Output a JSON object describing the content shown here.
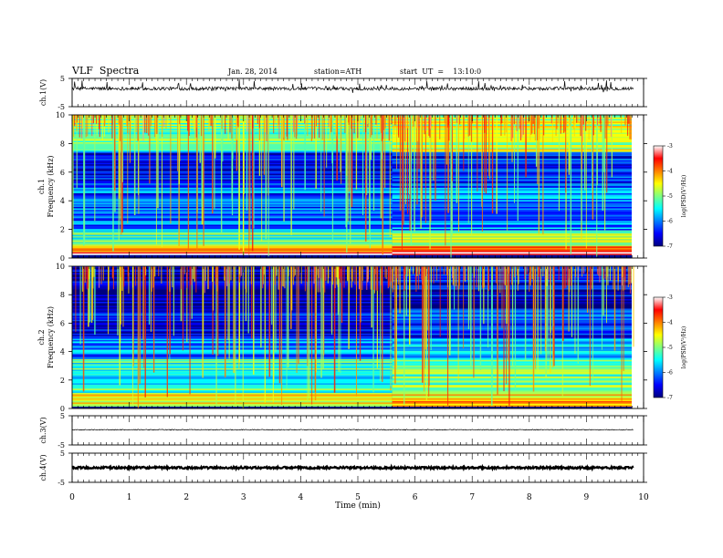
{
  "header": {
    "title": "VLF  Spectra",
    "date": "Jan. 28, 2014",
    "station": "station=ATH",
    "start": "start  UT  =    13:10:0"
  },
  "chart_data": [
    {
      "type": "line",
      "panel": "ch1-waveform",
      "ylabel": "ch.1(V)",
      "ylim": [
        -5,
        5
      ],
      "yticks": [
        "5",
        "-5"
      ],
      "x_range_min": [
        0,
        9.82
      ],
      "baseline_v": 1.4,
      "noise_amplitude_v": 0.6,
      "spike_amplitude_v": 2.4
    },
    {
      "type": "heatmap",
      "panel": "ch1-spectrogram",
      "ylabel": "ch.1\nFrequency  (kHz)",
      "ylim": [
        0,
        10
      ],
      "yticks": [
        "0",
        "2",
        "4",
        "6",
        "8",
        "10"
      ],
      "x_range_min": [
        0,
        9.82
      ],
      "colorbar": {
        "label": "log(PSD(V²/Hz)",
        "range": [
          -7,
          -3
        ],
        "ticks": [
          "-3",
          "-4",
          "-5",
          "-6",
          "-7"
        ]
      },
      "bands_khz_logpsd": [
        {
          "f": [
            0.3,
            0.5
          ],
          "value": -3.2
        },
        {
          "f": [
            0.5,
            0.9
          ],
          "value": -4.0
        },
        {
          "f": [
            0.9,
            2.0
          ],
          "value": -5.2
        },
        {
          "f": [
            2.0,
            5.0
          ],
          "value": -6.2
        },
        {
          "f": [
            5.0,
            7.5
          ],
          "value": -6.5
        },
        {
          "f": [
            7.5,
            10.0
          ],
          "value": -5.0
        }
      ],
      "transition_min": 5.6
    },
    {
      "type": "heatmap",
      "panel": "ch2-spectrogram",
      "ylabel": "ch.2\nFrequency  (kHz)",
      "ylim": [
        0,
        10
      ],
      "yticks": [
        "0",
        "2",
        "4",
        "6",
        "8",
        "10"
      ],
      "x_range_min": [
        0,
        9.82
      ],
      "colorbar": {
        "label": "log(PSD(V²/Hz)",
        "range": [
          -7,
          -3
        ],
        "ticks": [
          "-3",
          "-4",
          "-5",
          "-6",
          "-7"
        ]
      },
      "bands_khz_logpsd": [
        {
          "f": [
            0.2,
            1.0
          ],
          "value": -4.5
        },
        {
          "f": [
            1.0,
            3.5
          ],
          "value": -5.3
        },
        {
          "f": [
            3.5,
            5.0
          ],
          "value": -6.0
        },
        {
          "f": [
            5.0,
            7.0
          ],
          "value": -6.5
        },
        {
          "f": [
            7.0,
            10.0
          ],
          "value": -6.8
        }
      ],
      "transition_min": 5.6
    },
    {
      "type": "line",
      "panel": "ch3-waveform",
      "ylabel": "ch.3(V)",
      "ylim": [
        -5,
        5
      ],
      "yticks": [
        "5",
        "-5"
      ],
      "x_range_min": [
        0,
        9.82
      ],
      "baseline_v": 0.2,
      "noise_amplitude_v": 0.15
    },
    {
      "type": "line",
      "panel": "ch4-waveform",
      "ylabel": "ch.4(V)",
      "ylim": [
        -5,
        5
      ],
      "yticks": [
        "5",
        "-5"
      ],
      "x_range_min": [
        0,
        9.82
      ],
      "baseline_v": 0.0,
      "noise_amplitude_v": 0.35
    }
  ],
  "xaxis": {
    "label": "Time  (min)",
    "ticks": [
      "0",
      "1",
      "2",
      "3",
      "4",
      "5",
      "6",
      "7",
      "8",
      "9",
      "10"
    ],
    "range": [
      0,
      10
    ]
  }
}
